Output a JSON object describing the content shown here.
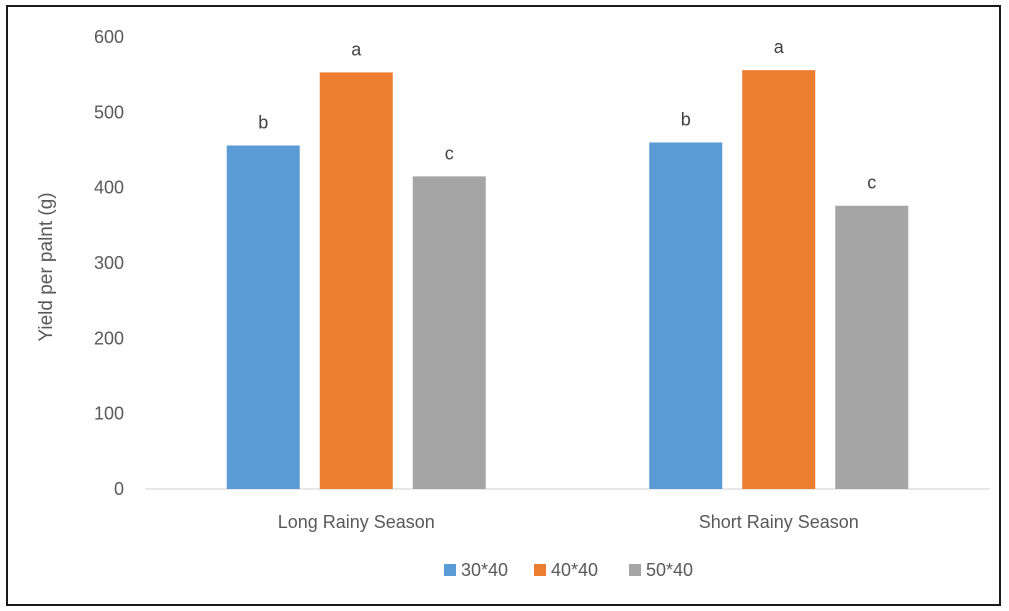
{
  "chart_data": {
    "type": "bar",
    "title": "",
    "xlabel": "",
    "ylabel": "Yield per palnt (g)",
    "ylim": [
      0,
      600
    ],
    "yticks": [
      0,
      100,
      200,
      300,
      400,
      500,
      600
    ],
    "grid": false,
    "legend_position": "bottom",
    "categories": [
      "Long Rainy Season",
      "Short Rainy Season"
    ],
    "series": [
      {
        "name": "30*40",
        "color": "#5B9BD5",
        "values": [
          456,
          460
        ],
        "labels": [
          "b",
          "b"
        ]
      },
      {
        "name": "40*40",
        "color": "#ED7D31",
        "values": [
          553,
          556
        ],
        "labels": [
          "a",
          "a"
        ]
      },
      {
        "name": "50*40",
        "color": "#A5A5A5",
        "values": [
          415,
          376
        ],
        "labels": [
          "c",
          "c"
        ]
      }
    ]
  }
}
